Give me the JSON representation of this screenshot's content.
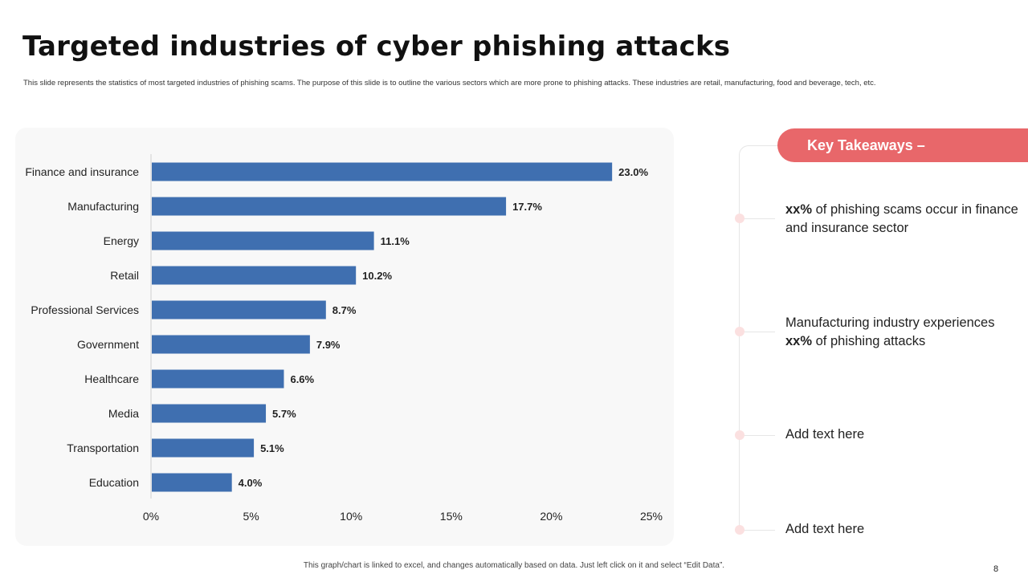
{
  "slide": {
    "title": "Targeted industries of cyber phishing attacks",
    "subtitle": "This slide represents the statistics of most targeted industries of phishing scams. The purpose of this slide is to outline the various sectors which are more prone to phishing attacks. These industries are retail, manufacturing, food and beverage, tech, etc.",
    "footer": "This graph/chart is linked to excel, and changes automatically based on data. Just left click on it and select “Edit Data”.",
    "page_number": "8"
  },
  "takeaways": {
    "header": "Key Takeaways –",
    "item1": {
      "bold": "xx%",
      "text": " of phishing scams occur in finance and insurance sector"
    },
    "item2": {
      "text": "Manufacturing industry experiences ",
      "bold": "xx%",
      "text_after": " of phishing attacks"
    },
    "item3": {
      "text": "Add text here"
    },
    "item4": {
      "text": "Add text here"
    }
  },
  "colors": {
    "bar": "#3f6fb0",
    "accent": "#e8676a",
    "dot": "#fbe0e0"
  },
  "chart_data": {
    "type": "bar",
    "orientation": "horizontal",
    "categories": [
      "Finance and insurance",
      "Manufacturing",
      "Energy",
      "Retail",
      "Professional Services",
      "Government",
      "Healthcare",
      "Media",
      "Transportation",
      "Education"
    ],
    "values": [
      23.0,
      17.7,
      11.1,
      10.2,
      8.7,
      7.9,
      6.6,
      5.7,
      5.1,
      4.0
    ],
    "value_labels": [
      "23.0%",
      "17.7%",
      "11.1%",
      "10.2%",
      "8.7%",
      "7.9%",
      "6.6%",
      "5.7%",
      "5.1%",
      "4.0%"
    ],
    "xlim": [
      0,
      25
    ],
    "xticks": [
      0,
      5,
      10,
      15,
      20,
      25
    ],
    "xtick_labels": [
      "0%",
      "5%",
      "10%",
      "15%",
      "20%",
      "25%"
    ],
    "grid": false,
    "legend": "none"
  }
}
